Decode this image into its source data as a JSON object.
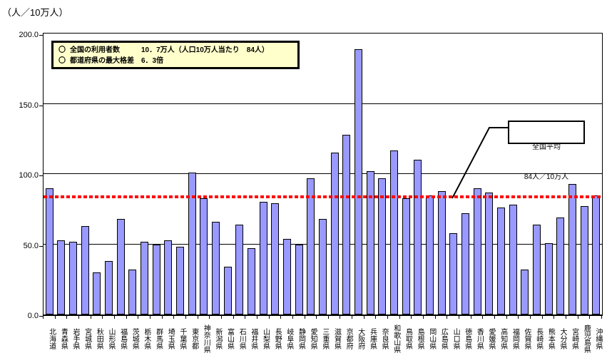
{
  "axis_unit_label": "（人／10万人）",
  "info_box": {
    "lines": [
      {
        "marker": "〇",
        "text": "全国の利用者数　　　10．7万人（人口10万人当たり　84人）"
      },
      {
        "marker": "〇",
        "text": "都道府県の最大格差　6．3倍"
      }
    ]
  },
  "annotation": {
    "line1": "全国平均",
    "line2": "84人／10万人"
  },
  "colors": {
    "bar_fill": "#9999FF",
    "bar_border": "#000000",
    "reference_line": "#FF0000",
    "info_box_bg": "#FFFFCC",
    "grid_line": "#000000"
  },
  "chart_data": {
    "type": "bar",
    "title": "",
    "xlabel": "",
    "ylabel": "（人／10万人）",
    "ylim": [
      0,
      200
    ],
    "ytick_labels": [
      "0.0",
      "50.0",
      "100.0",
      "150.0",
      "200.0"
    ],
    "grid": true,
    "legend": "none",
    "reference_line": {
      "value": 84,
      "label": "全国平均 84人／10万人",
      "style": "dashed",
      "color": "#FF0000"
    },
    "categories": [
      "北海道",
      "青森県",
      "岩手県",
      "宮城県",
      "秋田県",
      "山形県",
      "福島県",
      "茨城県",
      "栃木県",
      "群馬県",
      "埼玉県",
      "千葉県",
      "東京都",
      "神奈川県",
      "新潟県",
      "富山県",
      "石川県",
      "福井県",
      "山梨県",
      "長野県",
      "岐阜県",
      "静岡県",
      "愛知県",
      "三重県",
      "滋賀県",
      "京都府",
      "大阪府",
      "兵庫県",
      "奈良県",
      "和歌山県",
      "鳥取県",
      "島根県",
      "岡山県",
      "広島県",
      "山口県",
      "徳島県",
      "香川県",
      "愛媛県",
      "高知県",
      "福岡県",
      "佐賀県",
      "長崎県",
      "熊本県",
      "大分県",
      "宮崎県",
      "鹿児島県",
      "沖縄県"
    ],
    "values": [
      90,
      53,
      52,
      63,
      30,
      38,
      68,
      32,
      52,
      50,
      53,
      48,
      101,
      83,
      66,
      34,
      64,
      47,
      80,
      79,
      54,
      50,
      97,
      68,
      115,
      128,
      189,
      102,
      97,
      117,
      83,
      110,
      85,
      88,
      58,
      72,
      90,
      87,
      76,
      78,
      32,
      64,
      51,
      69,
      93,
      77,
      85
    ]
  }
}
